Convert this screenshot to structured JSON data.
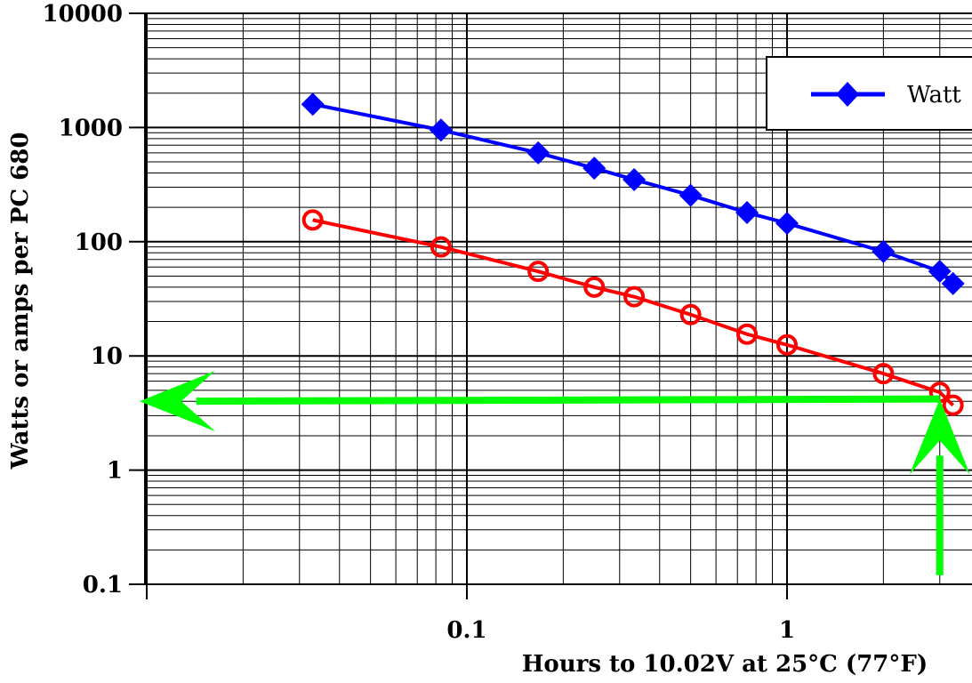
{
  "chart_data": {
    "type": "line",
    "title": "",
    "xlabel": "Hours to 10.02V at 25°C (77°F)",
    "ylabel": "Watts or amps per PC 680",
    "x_scale": "log",
    "y_scale": "log",
    "xlim": [
      0.01,
      3.3
    ],
    "ylim": [
      0.1,
      10000
    ],
    "grid": true,
    "legend_position": "top-right",
    "x_tick_labels": [
      "0.1",
      "1"
    ],
    "x_ticks": [
      0.1,
      1
    ],
    "y_tick_labels": [
      "0.1",
      "1",
      "10",
      "100",
      "1000",
      "10000"
    ],
    "y_ticks": [
      0.1,
      1,
      10,
      100,
      1000,
      10000
    ],
    "series": [
      {
        "name": "Watt",
        "color": "#0000ff",
        "marker": "diamond",
        "x": [
          0.033,
          0.083,
          0.167,
          0.25,
          0.333,
          0.5,
          0.75,
          1,
          2,
          3,
          3.3
        ],
        "y": [
          1600,
          950,
          600,
          440,
          350,
          255,
          180,
          145,
          82,
          55,
          43
        ]
      },
      {
        "name": "",
        "color": "#ff0000",
        "marker": "circle",
        "x": [
          0.033,
          0.083,
          0.167,
          0.25,
          0.333,
          0.5,
          0.75,
          1,
          2,
          3,
          3.3
        ],
        "y": [
          155,
          90,
          55,
          40,
          33,
          23,
          15.5,
          12.5,
          7,
          4.8,
          3.7
        ]
      }
    ],
    "annotations": [
      {
        "type": "arrow",
        "color": "#00ff00",
        "from": [
          3,
          0.12
        ],
        "to": [
          3,
          4.2
        ]
      },
      {
        "type": "arrow",
        "color": "#00ff00",
        "from": [
          3,
          4.2
        ],
        "to": [
          0.0095,
          4.0
        ]
      }
    ]
  }
}
